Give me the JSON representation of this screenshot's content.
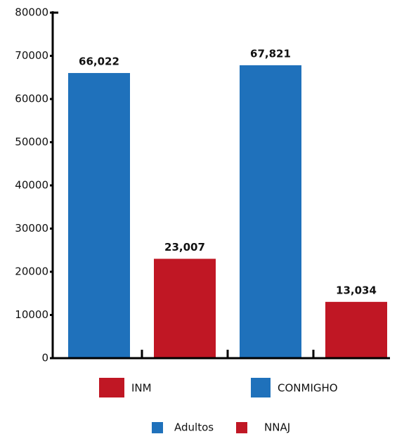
{
  "chart_data": {
    "type": "bar",
    "categories": [
      null,
      null,
      null,
      null
    ],
    "series": [
      {
        "name": "Adultos",
        "color": "#1f71bb",
        "values": [
          66022,
          null,
          67821,
          null
        ],
        "value_labels": [
          "66,022",
          null,
          "67,821",
          null
        ]
      },
      {
        "name": "NNAJ",
        "color": "#c01724",
        "values": [
          null,
          23007,
          null,
          13034
        ],
        "value_labels": [
          null,
          "23,007",
          null,
          "13,034"
        ]
      }
    ],
    "annotations": [
      {
        "text": "INM",
        "color": "#c01724"
      },
      {
        "text": "CONMIGHO",
        "color": "#1f71bb"
      }
    ],
    "ylim": [
      0,
      80000
    ],
    "yticks": [
      0,
      10000,
      20000,
      30000,
      40000,
      50000,
      60000,
      70000,
      80000
    ],
    "grid": false
  }
}
